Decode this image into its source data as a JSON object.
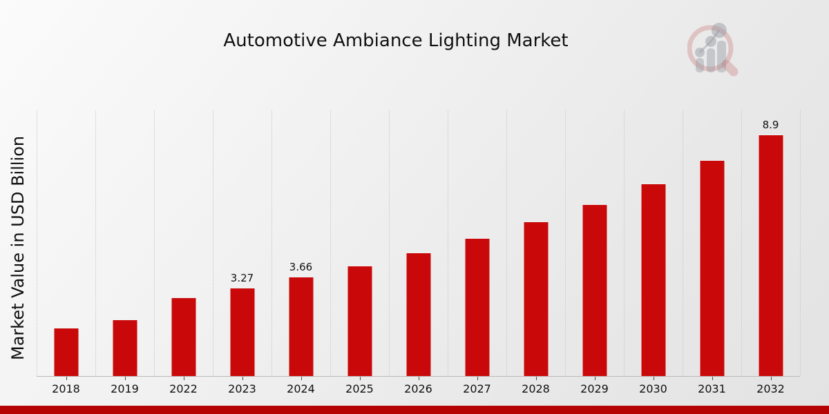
{
  "title": "Automotive Ambiance Lighting Market",
  "watermark_icon": "magnifier-bar-chart-logo",
  "colors": {
    "bar": "#c90909",
    "footer_band": "#b50303",
    "grid": "#c7c7c7",
    "text": "#101010",
    "background_light": "#fbfbfb",
    "background_dark": "#e3e3e3"
  },
  "chart_data": {
    "type": "bar",
    "title": "Automotive Ambiance Lighting Market",
    "xlabel": "",
    "ylabel": "Market Value in USD Billion",
    "categories": [
      "2018",
      "2019",
      "2022",
      "2023",
      "2024",
      "2025",
      "2026",
      "2027",
      "2028",
      "2029",
      "2030",
      "2031",
      "2032"
    ],
    "values": [
      1.78,
      2.09,
      2.9,
      3.27,
      3.66,
      4.08,
      4.56,
      5.09,
      5.69,
      6.35,
      7.1,
      7.97,
      8.9
    ],
    "point_labels": [
      "",
      "",
      "",
      "3.27",
      "3.66",
      "",
      "",
      "",
      "",
      "",
      "",
      "",
      "8.9"
    ],
    "ylim": [
      0,
      9.8
    ],
    "grid": "vertical dotted lines at category boundaries",
    "legend": "none",
    "bar_color": "#c90909"
  }
}
